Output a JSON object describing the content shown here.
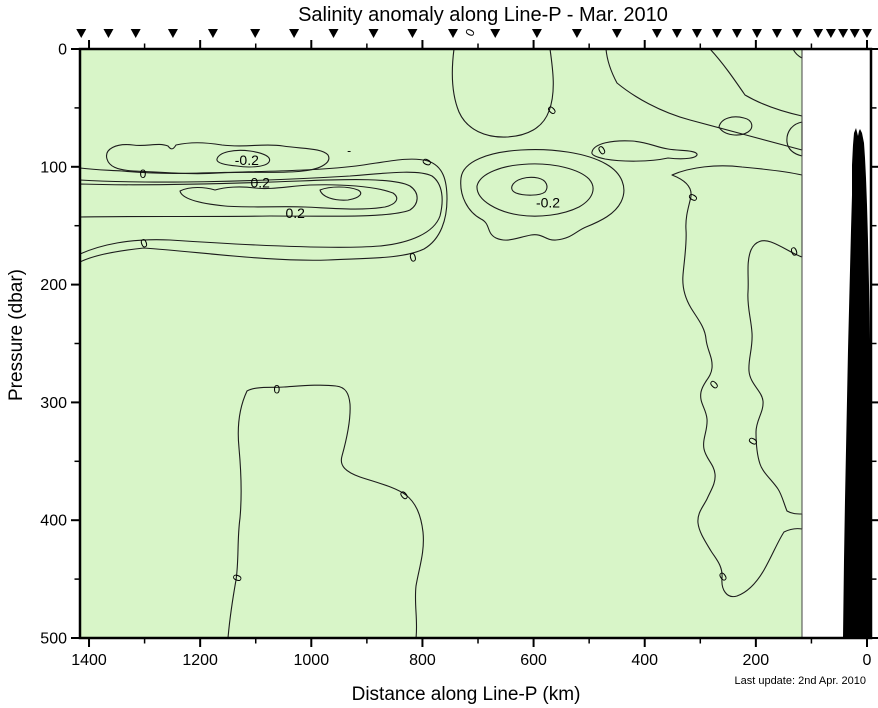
{
  "title": "Salinity anomaly along Line-P - Mar. 2010",
  "footnote": "Last update: 2nd Apr. 2010",
  "chart_data": {
    "type": "heatmap",
    "subtype": "filled_contour_ocean_section",
    "title": "Salinity anomaly along Line-P - Mar. 2010",
    "xlabel": "Distance along Line-P (km)",
    "ylabel": "Pressure (dbar)",
    "x_axis": {
      "range_km": [
        1415,
        0
      ],
      "reversed": true,
      "major_ticks": [
        1400,
        1200,
        1000,
        800,
        600,
        400,
        200,
        0
      ],
      "minor_ticks": [
        1300,
        1100,
        900,
        700,
        500,
        300,
        100
      ]
    },
    "y_axis": {
      "range_dbar": [
        0,
        500
      ],
      "increases_downward": true,
      "major_ticks": [
        0,
        100,
        200,
        300,
        400,
        500
      ],
      "minor_ticks": [
        50,
        150,
        250,
        350,
        450
      ]
    },
    "grid": false,
    "legend": "none",
    "contour_interval": 0.1,
    "labeled_levels": [
      -0.2,
      0,
      0.2
    ],
    "data_right_edge_km": 117,
    "station_markers_km": [
      1414,
      1365,
      1316,
      1249,
      1177,
      1101,
      1031,
      960,
      888,
      818,
      745,
      669,
      594,
      522,
      450,
      378,
      342,
      306,
      270,
      234,
      198,
      162,
      126,
      88,
      65,
      43,
      22,
      0
    ],
    "contour_labels": [
      {
        "text": "-0.2",
        "km": 1116,
        "dbar": 95,
        "rot": 0
      },
      {
        "text": "-",
        "km": 932,
        "dbar": 86,
        "rot": 0
      },
      {
        "text": "0",
        "km": 1303,
        "dbar": 106,
        "rot": 0
      },
      {
        "text": "0.2",
        "km": 1092,
        "dbar": 114,
        "rot": 0
      },
      {
        "text": "0.2",
        "km": 1029,
        "dbar": 140,
        "rot": 0
      },
      {
        "text": "0",
        "km": 792,
        "dbar": 96,
        "rot": -65
      },
      {
        "text": "0",
        "km": 1301,
        "dbar": 165,
        "rot": -20
      },
      {
        "text": "0",
        "km": 817,
        "dbar": 177,
        "rot": -15
      },
      {
        "text": "0",
        "km": 567,
        "dbar": 52,
        "rot": -45
      },
      {
        "text": "0",
        "km": 714,
        "dbar": -14,
        "rot": -65
      },
      {
        "text": "0",
        "km": 477,
        "dbar": 86,
        "rot": -30
      },
      {
        "text": "-0.2",
        "km": 574,
        "dbar": 131,
        "rot": 0
      },
      {
        "text": "0",
        "km": 313,
        "dbar": 126,
        "rot": -60
      },
      {
        "text": "0",
        "km": 131,
        "dbar": 172,
        "rot": -20
      },
      {
        "text": "0",
        "km": 275,
        "dbar": 285,
        "rot": -45
      },
      {
        "text": "0",
        "km": 205,
        "dbar": 333,
        "rot": -60
      },
      {
        "text": "0",
        "km": 259,
        "dbar": 448,
        "rot": -35
      },
      {
        "text": "0",
        "km": 1062,
        "dbar": 289,
        "rot": 0
      },
      {
        "text": "0",
        "km": 833,
        "dbar": 379,
        "rot": -40
      },
      {
        "text": "0",
        "km": 1133,
        "dbar": 449,
        "rot": -70
      }
    ],
    "colormap": {
      "below_-0.3": "#5cdc63",
      "-0.3_to_-0.2": "#7fe57f",
      "-0.2_to_-0.1": "#a9ef9d",
      "-0.1_to_0": "#d8f5c8",
      "0_to_0.2": "#fefce2",
      "0.2_to_0.3": "#f9f3bc",
      "0.3_to_0.4": "#f4ec9e",
      "above_0.4": "#f0e688"
    },
    "bathymetry_fill": "#000000",
    "axis_color": "#000000"
  }
}
